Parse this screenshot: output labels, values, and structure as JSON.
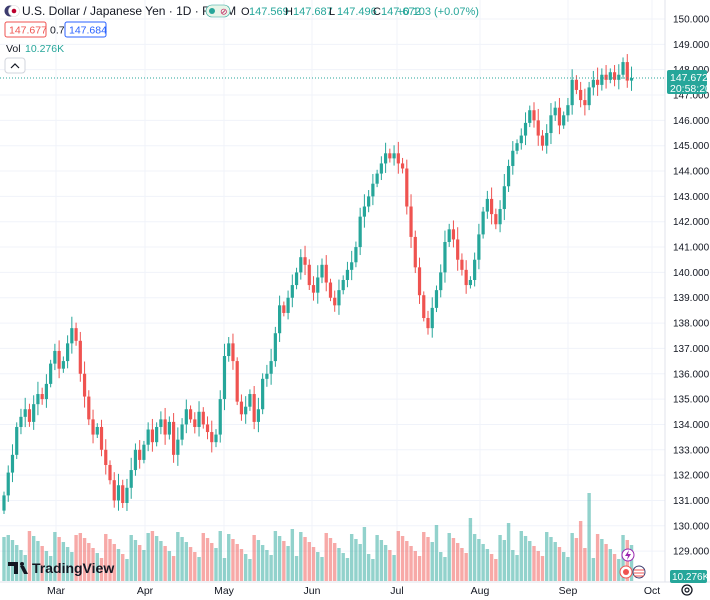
{
  "header": {
    "symbol_title": "U.S. Dollar / Japanese Yen · 1D · FXCM",
    "ohlc": [
      {
        "k": "O",
        "v": "147.569"
      },
      {
        "k": "H",
        "v": "147.687"
      },
      {
        "k": "L",
        "v": "147.496"
      },
      {
        "k": "C",
        "v": "147.672"
      }
    ],
    "change": "+0.103 (+0.07%)",
    "sell_price": "147.677",
    "spread": "0.7",
    "buy_price": "147.684",
    "vol_label": "Vol",
    "vol_value": "10.276K"
  },
  "price_axis": {
    "ticks": [
      "150.000",
      "149.000",
      "148.000",
      "147.000",
      "146.000",
      "145.000",
      "144.000",
      "143.000",
      "142.000",
      "141.000",
      "140.000",
      "139.000",
      "138.000",
      "137.000",
      "136.000",
      "135.000",
      "134.000",
      "133.000",
      "132.000",
      "131.000",
      "130.000",
      "129.000"
    ],
    "last_price": "147.672",
    "countdown": "20:58:20",
    "vol_badge": "10.276K"
  },
  "time_axis": {
    "labels": [
      {
        "t": "Mar",
        "x": 56
      },
      {
        "t": "Apr",
        "x": 145
      },
      {
        "t": "May",
        "x": 224
      },
      {
        "t": "Jun",
        "x": 312
      },
      {
        "t": "Jul",
        "x": 397
      },
      {
        "t": "Aug",
        "x": 480
      },
      {
        "t": "Sep",
        "x": 568
      },
      {
        "t": "Oct",
        "x": 652
      }
    ]
  },
  "branding": {
    "logo_text": "TradingView"
  },
  "colors": {
    "up": "#26a69a",
    "down": "#ef5350",
    "last_line": "#26a69a",
    "blue": "#2962ff"
  },
  "chart_data": {
    "type": "candlestick",
    "symbol": "USDJPY",
    "interval": "1D",
    "ylim": [
      128.5,
      150.3
    ],
    "closes": [
      131.2,
      132.1,
      132.8,
      133.9,
      134.3,
      134.6,
      134.1,
      134.8,
      135.2,
      135.0,
      135.6,
      136.4,
      136.9,
      136.2,
      136.5,
      137.2,
      137.8,
      137.3,
      136.0,
      135.1,
      134.2,
      133.6,
      133.9,
      133.0,
      132.4,
      131.8,
      131.0,
      131.6,
      130.9,
      131.5,
      132.2,
      133.0,
      132.6,
      133.2,
      133.8,
      133.3,
      133.9,
      134.2,
      133.6,
      134.1,
      132.8,
      133.4,
      134.0,
      134.6,
      134.2,
      133.9,
      134.5,
      134.0,
      133.7,
      133.3,
      133.6,
      135.0,
      136.7,
      137.2,
      136.5,
      134.9,
      134.4,
      134.7,
      135.2,
      134.1,
      134.6,
      135.8,
      136.0,
      136.5,
      137.6,
      138.7,
      138.4,
      139.0,
      139.5,
      140.0,
      140.6,
      140.3,
      139.5,
      139.2,
      139.8,
      140.3,
      139.6,
      139.0,
      138.7,
      139.3,
      139.7,
      140.1,
      140.4,
      141.0,
      142.2,
      142.6,
      143.0,
      143.5,
      143.9,
      144.3,
      144.7,
      144.5,
      144.7,
      144.3,
      144.1,
      142.6,
      141.4,
      140.2,
      139.1,
      138.2,
      137.8,
      138.6,
      139.3,
      140.0,
      141.2,
      141.7,
      141.3,
      140.5,
      140.1,
      139.5,
      139.7,
      140.5,
      141.5,
      142.4,
      142.9,
      142.3,
      141.9,
      142.5,
      143.4,
      144.2,
      144.8,
      145.1,
      145.4,
      145.9,
      146.4,
      146.0,
      145.4,
      145.0,
      145.5,
      146.2,
      146.5,
      145.8,
      146.2,
      146.6,
      147.6,
      147.2,
      146.8,
      146.6,
      147.3,
      147.6,
      147.4,
      147.8,
      147.6,
      147.9,
      147.6,
      147.8,
      148.3,
      147.57,
      147.672
    ]
  }
}
